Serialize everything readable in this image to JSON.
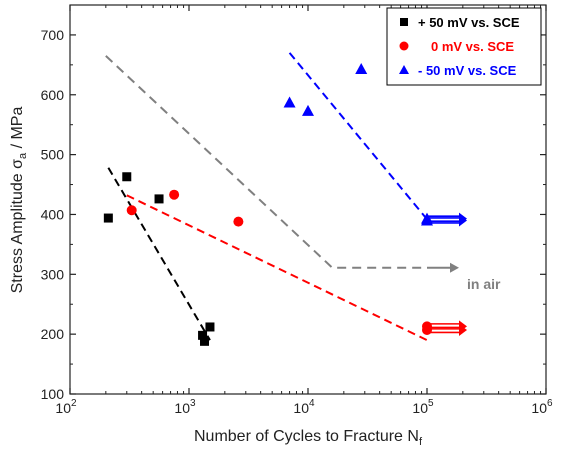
{
  "chart_data": {
    "type": "scatter",
    "xlabel": "Number of Cycles to Fracture N",
    "xlabel_subscript": "f",
    "ylabel": "Stress Amplitude σ",
    "ylabel_subscript": "a",
    "ylabel_unit": " / MPa",
    "x_scale": "log",
    "xlim": [
      100,
      1000000
    ],
    "ylim": [
      100,
      750
    ],
    "x_ticks": [
      100,
      1000,
      10000,
      100000,
      1000000
    ],
    "x_tick_labels": [
      {
        "base": "10",
        "exp": "2"
      },
      {
        "base": "10",
        "exp": "3"
      },
      {
        "base": "10",
        "exp": "4"
      },
      {
        "base": "10",
        "exp": "5"
      },
      {
        "base": "10",
        "exp": "6"
      }
    ],
    "y_ticks": [
      100,
      200,
      300,
      400,
      500,
      600,
      700
    ],
    "grid": false,
    "legend_position": "top-right",
    "series": [
      {
        "name": "+ 50 mV vs. SCE",
        "color": "#000000",
        "marker": "square",
        "points": [
          [
            210,
            394
          ],
          [
            300,
            463
          ],
          [
            560,
            426
          ],
          [
            1300,
            198
          ],
          [
            1350,
            188
          ],
          [
            1500,
            212
          ]
        ],
        "trend": [
          [
            210,
            478
          ],
          [
            1500,
            190
          ]
        ]
      },
      {
        "name": "0 mV vs. SCE",
        "color": "#ff0000",
        "marker": "circle",
        "points": [
          [
            330,
            407
          ],
          [
            750,
            433
          ],
          [
            2600,
            388
          ],
          [
            100000,
            213
          ],
          [
            100000,
            207
          ]
        ],
        "trend": [
          [
            300,
            432
          ],
          [
            100000,
            190
          ]
        ],
        "runout": [
          [
            100000,
            213
          ],
          [
            100000,
            207
          ]
        ]
      },
      {
        "name": "- 50 mV vs. SCE",
        "color": "#0000ff",
        "marker": "triangle",
        "points": [
          [
            7000,
            587
          ],
          [
            10000,
            573
          ],
          [
            28000,
            643
          ],
          [
            100000,
            393
          ],
          [
            100000,
            390
          ]
        ],
        "trend": [
          [
            7000,
            670
          ],
          [
            100000,
            392
          ]
        ],
        "runout": [
          [
            100000,
            393
          ],
          [
            100000,
            390
          ]
        ]
      }
    ],
    "reference_line": {
      "label": "in air",
      "color": "#808080",
      "points": [
        [
          200,
          665
        ],
        [
          16000,
          311
        ],
        [
          100000,
          311
        ]
      ],
      "runout": [
        [
          100000,
          311
        ]
      ]
    }
  }
}
